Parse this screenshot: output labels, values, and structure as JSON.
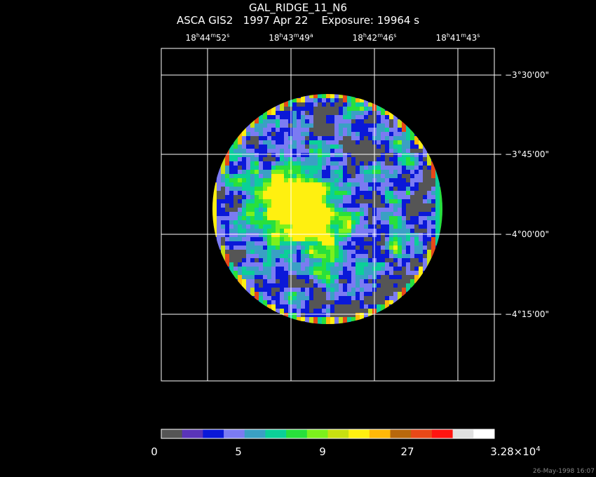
{
  "title": {
    "object": "GAL_RIDGE_11_N6",
    "instrument": "ASCA GIS2",
    "date": "1997 Apr 22",
    "exposure": "Exposure: 19964 s"
  },
  "ra_ticks": [
    {
      "h": "18",
      "m": "44",
      "s": "52",
      "s_suffix": "s"
    },
    {
      "h": "18",
      "m": "43",
      "s": "49",
      "s_suffix": "a"
    },
    {
      "h": "18",
      "m": "42",
      "s": "46",
      "s_suffix": "s"
    },
    {
      "h": "18",
      "m": "41",
      "s": "43",
      "s_suffix": "s"
    }
  ],
  "dec_ticks": [
    "−3°30'00\"",
    "−3°45'00\"",
    "−4°00'00\"",
    "−4°15'00\""
  ],
  "colorbar": {
    "colors": [
      "#555555",
      "#5a34b8",
      "#0a18d8",
      "#7b7bf2",
      "#3aa0c4",
      "#0bd098",
      "#28e03c",
      "#7cf01c",
      "#c8e010",
      "#fff010",
      "#ffb808",
      "#b8680c",
      "#e84818",
      "#ff1410",
      "#e0e0e0",
      "#ffffff"
    ],
    "labels": [
      "0",
      "5",
      "9",
      "27",
      "3.28×10"
    ],
    "last_label_exponent": "4"
  },
  "timestamp": "26-May-1998 16:07"
}
